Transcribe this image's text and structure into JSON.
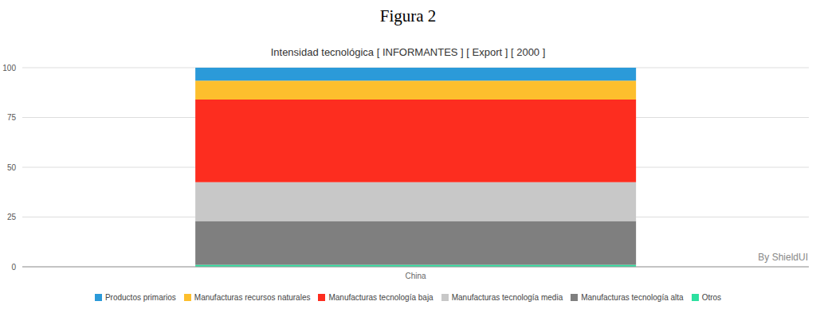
{
  "chart_data": {
    "type": "bar",
    "title": "Figura 2",
    "subtitle": "Intensidad tecnológica [ INFORMANTES ] [ Export ] [ 2000 ]",
    "annotations": [
      "By ShieldUI"
    ],
    "categories": [
      "China"
    ],
    "series": [
      {
        "name": "Productos primarios",
        "color": "#2b9ad9",
        "values": [
          6.5
        ]
      },
      {
        "name": "Manufacturas recursos naturales",
        "color": "#fdbf2d",
        "values": [
          9.5
        ]
      },
      {
        "name": "Manufacturas tecnología baja",
        "color": "#fd2d1f",
        "values": [
          41.5
        ]
      },
      {
        "name": "Manufacturas tecnología media",
        "color": "#c8c8c8",
        "values": [
          19.5
        ]
      },
      {
        "name": "Manufacturas tecnología alta",
        "color": "#7f7f7f",
        "values": [
          22
        ]
      },
      {
        "name": "Otros",
        "color": "#2de0a0",
        "values": [
          1
        ]
      }
    ],
    "ylim": [
      0,
      100
    ],
    "yticks": [
      0,
      25,
      50,
      75,
      100
    ],
    "grid": true,
    "stacked": true,
    "legend": "bottom"
  }
}
